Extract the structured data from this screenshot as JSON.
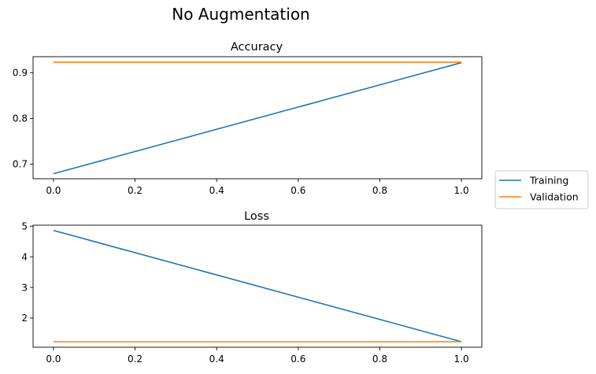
{
  "suptitle": "No Augmentation",
  "colors": {
    "training": "#1f77b4",
    "validation": "#ff7f0e"
  },
  "legend": {
    "placement": "center-right",
    "entries": [
      "Training",
      "Validation"
    ]
  },
  "chart_data": [
    {
      "type": "line",
      "title": "Accuracy",
      "xlabel": "",
      "ylabel": "",
      "x": [
        0,
        1
      ],
      "xlim": [
        -0.05,
        1.05
      ],
      "ylim": [
        0.668,
        0.935
      ],
      "xticks": [
        0.0,
        0.2,
        0.4,
        0.6,
        0.8,
        1.0
      ],
      "xtick_labels": [
        "0.0",
        "0.2",
        "0.4",
        "0.6",
        "0.8",
        "1.0"
      ],
      "yticks": [
        0.7,
        0.8,
        0.9
      ],
      "ytick_labels": [
        "0.7",
        "0.8",
        "0.9"
      ],
      "grid": false,
      "series": [
        {
          "name": "Training",
          "values": [
            0.679,
            0.922
          ]
        },
        {
          "name": "Validation",
          "values": [
            0.923,
            0.923
          ]
        }
      ]
    },
    {
      "type": "line",
      "title": "Loss",
      "xlabel": "",
      "ylabel": "",
      "x": [
        0,
        1
      ],
      "xlim": [
        -0.05,
        1.05
      ],
      "ylim": [
        1.05,
        5.03
      ],
      "xticks": [
        0.0,
        0.2,
        0.4,
        0.6,
        0.8,
        1.0
      ],
      "xtick_labels": [
        "0.0",
        "0.2",
        "0.4",
        "0.6",
        "0.8",
        "1.0"
      ],
      "yticks": [
        2,
        3,
        4,
        5
      ],
      "ytick_labels": [
        "2",
        "3",
        "4",
        "5"
      ],
      "grid": false,
      "series": [
        {
          "name": "Training",
          "values": [
            4.86,
            1.23
          ]
        },
        {
          "name": "Validation",
          "values": [
            1.23,
            1.23
          ]
        }
      ]
    }
  ]
}
